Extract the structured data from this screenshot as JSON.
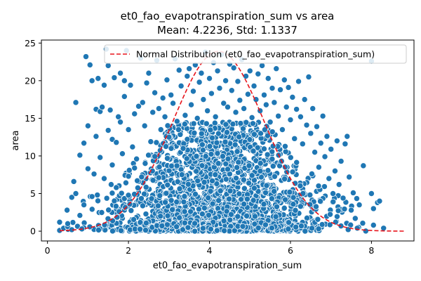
{
  "chart_data": {
    "type": "scatter",
    "title": "et0_fao_evapotranspiration_sum vs area",
    "subtitle": "Mean: 4.2236, Std: 1.1337",
    "xlabel": "et0_fao_evapotranspiration_sum",
    "ylabel": "area",
    "xlim": [
      -0.15,
      9.05
    ],
    "ylim": [
      -1.3,
      25.4
    ],
    "x_ticks": [
      0,
      2,
      4,
      6,
      8
    ],
    "x_tick_labels": [
      "0",
      "2",
      "4",
      "6",
      "8"
    ],
    "y_ticks": [
      0,
      5,
      10,
      15,
      20,
      25
    ],
    "y_tick_labels": [
      "0",
      "5",
      "10",
      "15",
      "20",
      "25"
    ],
    "grid": false,
    "legend_position": "top-right",
    "colors": {
      "points": "#1f77b4",
      "point_edge": "#ffffff",
      "curve": "#e8141b"
    },
    "series": [
      {
        "kind": "scatter",
        "points": [
          [
            0.3,
            1.2
          ],
          [
            0.3,
            0.1
          ],
          [
            0.4,
            0.4
          ],
          [
            0.5,
            0.6
          ],
          [
            0.5,
            1.0
          ],
          [
            0.6,
            0.2
          ],
          [
            0.6,
            4.5
          ],
          [
            0.65,
            6.6
          ],
          [
            0.7,
            5.0
          ],
          [
            0.7,
            17.1
          ],
          [
            0.8,
            2.1
          ],
          [
            0.8,
            10.1
          ],
          [
            0.85,
            0.3
          ],
          [
            0.9,
            3.5
          ],
          [
            0.9,
            11.7
          ],
          [
            0.95,
            23.2
          ],
          [
            1.0,
            8.3
          ],
          [
            1.0,
            14.0
          ],
          [
            1.05,
            22.1
          ],
          [
            1.1,
            20.0
          ],
          [
            1.1,
            4.6
          ],
          [
            1.15,
            7.6
          ],
          [
            1.2,
            16.2
          ],
          [
            1.2,
            12.6
          ],
          [
            1.25,
            20.3
          ],
          [
            1.3,
            15.9
          ],
          [
            1.3,
            9.8
          ],
          [
            1.35,
            16.5
          ],
          [
            1.4,
            19.4
          ],
          [
            1.4,
            7.0
          ],
          [
            1.45,
            24.2
          ],
          [
            1.5,
            22.0
          ],
          [
            1.5,
            13.4
          ],
          [
            1.55,
            16.1
          ],
          [
            1.6,
            12.2
          ],
          [
            1.6,
            8.8
          ],
          [
            1.65,
            20.4
          ],
          [
            1.7,
            11.8
          ],
          [
            1.7,
            5.8
          ],
          [
            1.75,
            15.2
          ],
          [
            1.8,
            21.0
          ],
          [
            1.8,
            14.5
          ],
          [
            1.85,
            10.3
          ],
          [
            1.9,
            20.0
          ],
          [
            1.9,
            17.9
          ],
          [
            1.95,
            24.0
          ],
          [
            2.0,
            7.3
          ],
          [
            2.0,
            13.5
          ],
          [
            2.05,
            19.4
          ],
          [
            2.1,
            11.2
          ],
          [
            2.15,
            15.6
          ],
          [
            2.2,
            9.6
          ],
          [
            2.25,
            16.6
          ],
          [
            2.3,
            23.0
          ],
          [
            2.35,
            17.1
          ],
          [
            2.4,
            14.0
          ],
          [
            2.45,
            19.7
          ],
          [
            2.5,
            21.0
          ],
          [
            2.55,
            11.9
          ],
          [
            2.6,
            15.8
          ],
          [
            2.65,
            18.4
          ],
          [
            2.7,
            22.7
          ],
          [
            2.75,
            16.3
          ],
          [
            2.8,
            13.5
          ],
          [
            2.85,
            17.7
          ],
          [
            2.9,
            15.2
          ],
          [
            2.95,
            20.1
          ],
          [
            3.0,
            12.5
          ],
          [
            3.05,
            18.1
          ],
          [
            3.1,
            17.0
          ],
          [
            3.15,
            22.9
          ],
          [
            3.2,
            14.6
          ],
          [
            3.25,
            21.4
          ],
          [
            3.3,
            19.3
          ],
          [
            3.35,
            11.0
          ],
          [
            3.4,
            15.4
          ],
          [
            3.45,
            20.6
          ],
          [
            3.5,
            21.6
          ],
          [
            3.55,
            16.8
          ],
          [
            3.6,
            18.6
          ],
          [
            3.65,
            22.1
          ],
          [
            3.7,
            15.0
          ],
          [
            3.75,
            19.8
          ],
          [
            3.8,
            21.0
          ],
          [
            3.85,
            17.5
          ],
          [
            3.9,
            23.8
          ],
          [
            3.95,
            16.0
          ],
          [
            4.0,
            20.3
          ],
          [
            4.05,
            18.3
          ],
          [
            4.1,
            22.4
          ],
          [
            4.15,
            15.2
          ],
          [
            4.2,
            21.3
          ],
          [
            4.25,
            19.0
          ],
          [
            4.3,
            23.5
          ],
          [
            4.35,
            17.0
          ],
          [
            4.4,
            20.0
          ],
          [
            4.45,
            16.5
          ],
          [
            4.5,
            22.2
          ],
          [
            4.55,
            18.7
          ],
          [
            4.6,
            21.7
          ],
          [
            4.65,
            15.8
          ],
          [
            4.7,
            19.9
          ],
          [
            4.75,
            17.4
          ],
          [
            4.8,
            22.8
          ],
          [
            4.85,
            16.3
          ],
          [
            4.9,
            20.6
          ],
          [
            4.95,
            18.2
          ],
          [
            5.0,
            21.3
          ],
          [
            5.05,
            15.1
          ],
          [
            5.1,
            19.3
          ],
          [
            5.15,
            17.5
          ],
          [
            5.2,
            20.9
          ],
          [
            5.25,
            16.0
          ],
          [
            5.3,
            22.0
          ],
          [
            5.35,
            18.1
          ],
          [
            5.4,
            16.8
          ],
          [
            5.45,
            20.3
          ],
          [
            5.5,
            14.5
          ],
          [
            5.55,
            19.0
          ],
          [
            5.6,
            17.1
          ],
          [
            5.65,
            21.6
          ],
          [
            5.7,
            15.3
          ],
          [
            5.75,
            18.8
          ],
          [
            5.8,
            13.5
          ],
          [
            5.85,
            20.1
          ],
          [
            5.9,
            16.5
          ],
          [
            5.95,
            19.1
          ],
          [
            6.0,
            14.8
          ],
          [
            6.05,
            17.8
          ],
          [
            6.1,
            12.3
          ],
          [
            6.15,
            16.2
          ],
          [
            6.2,
            19.9
          ],
          [
            6.25,
            15.2
          ],
          [
            6.3,
            11.6
          ],
          [
            6.35,
            17.5
          ],
          [
            6.4,
            14.1
          ],
          [
            6.45,
            20.5
          ],
          [
            6.5,
            13.0
          ],
          [
            6.55,
            16.3
          ],
          [
            6.6,
            10.5
          ],
          [
            6.65,
            13.9
          ],
          [
            6.7,
            8.5
          ],
          [
            6.75,
            11.7
          ],
          [
            6.8,
            15.3
          ],
          [
            6.85,
            9.9
          ],
          [
            6.9,
            12.6
          ],
          [
            6.95,
            7.0
          ],
          [
            7.0,
            10.9
          ],
          [
            7.05,
            5.0
          ],
          [
            7.1,
            8.0
          ],
          [
            7.15,
            12.0
          ],
          [
            7.2,
            6.2
          ],
          [
            7.25,
            9.3
          ],
          [
            7.3,
            4.4
          ],
          [
            7.35,
            11.6
          ],
          [
            7.4,
            12.6
          ],
          [
            7.45,
            7.2
          ],
          [
            7.5,
            2.8
          ],
          [
            7.55,
            5.1
          ],
          [
            7.6,
            1.7
          ],
          [
            7.65,
            0.4
          ],
          [
            7.7,
            3.5
          ],
          [
            7.8,
            8.7
          ],
          [
            8.0,
            5.0
          ],
          [
            8.0,
            22.6
          ],
          [
            8.05,
            3.0
          ],
          [
            8.15,
            3.8
          ],
          [
            8.2,
            4.0
          ],
          [
            8.3,
            0.4
          ],
          [
            8.05,
            0.8
          ]
        ]
      },
      {
        "kind": "line",
        "name": "Normal Distribution (et0_fao_evapotranspiration_sum)",
        "style": "dashed",
        "mean": 4.2236,
        "std": 1.1337,
        "x_range": [
          0.3,
          8.8
        ],
        "peak_y": 23.9
      }
    ]
  }
}
